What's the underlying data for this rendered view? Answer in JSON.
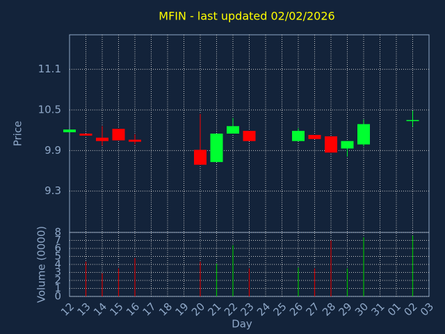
{
  "chart_data": {
    "type": "candlestick",
    "title": "MFIN - last updated 02/02/2026",
    "x_label": "Day",
    "y_label": "Price",
    "y2_label": "Volume (0000)",
    "categories": [
      "12",
      "13",
      "14",
      "15",
      "16",
      "17",
      "18",
      "19",
      "20",
      "21",
      "22",
      "23",
      "24",
      "25",
      "26",
      "27",
      "28",
      "29",
      "30",
      "31",
      "01",
      "02",
      "03"
    ],
    "open": [
      10.17,
      10.15,
      10.09,
      10.22,
      10.06,
      null,
      null,
      null,
      9.91,
      9.73,
      10.15,
      10.19,
      null,
      null,
      10.04,
      10.13,
      10.11,
      9.93,
      9.99,
      null,
      null,
      10.35,
      null
    ],
    "high": [
      10.21,
      10.15,
      10.26,
      10.22,
      10.14,
      null,
      null,
      null,
      10.44,
      10.15,
      10.38,
      10.19,
      null,
      null,
      10.23,
      10.13,
      10.11,
      10.04,
      10.36,
      null,
      null,
      10.49,
      null
    ],
    "low": [
      10.17,
      10.12,
      9.97,
      10.05,
      9.99,
      null,
      null,
      null,
      9.69,
      9.73,
      10.15,
      10.04,
      null,
      null,
      10.04,
      10.07,
      9.87,
      9.81,
      9.96,
      null,
      null,
      10.25,
      null
    ],
    "close": [
      10.21,
      10.12,
      10.04,
      10.05,
      10.03,
      null,
      null,
      null,
      9.69,
      10.15,
      10.26,
      10.04,
      null,
      null,
      10.19,
      10.07,
      9.87,
      10.04,
      10.29,
      null,
      null,
      10.35,
      null
    ],
    "volume": [
      null,
      4.35,
      2.9,
      3.5,
      4.8,
      null,
      null,
      null,
      4.35,
      4.1,
      6.4,
      3.5,
      null,
      null,
      3.6,
      3.5,
      7.0,
      3.5,
      7.4,
      null,
      null,
      7.6,
      null
    ],
    "up_color": "#00ff30",
    "down_color": "#ff0000",
    "up_volume_color": "#00c000",
    "down_volume_color": "#d00000",
    "ylim": [
      8.69,
      11.61
    ],
    "yticks": [
      9.3,
      9.9,
      10.5,
      11.1
    ],
    "y2lim": [
      0,
      8
    ],
    "y2ticks": [
      0,
      1,
      2,
      3,
      4,
      5,
      6,
      7,
      8
    ],
    "grid": true
  }
}
